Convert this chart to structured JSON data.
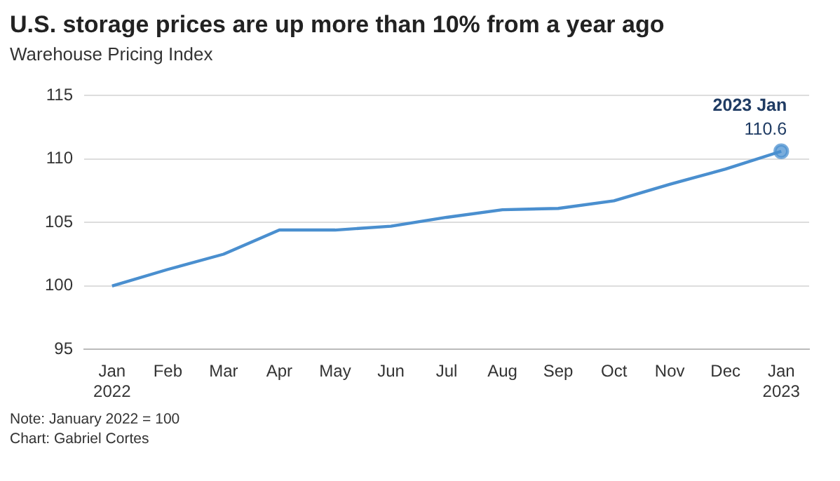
{
  "chart_data": {
    "type": "line",
    "title": "U.S. storage prices are up more than 10% from a year ago",
    "subtitle": "Warehouse Pricing Index",
    "categories": [
      "Jan 2022",
      "Feb",
      "Mar",
      "Apr",
      "May",
      "Jun",
      "Jul",
      "Aug",
      "Sep",
      "Oct",
      "Nov",
      "Dec",
      "Jan 2023"
    ],
    "series": [
      {
        "color": "#4a8fcf",
        "values": [
          100,
          101.3,
          102.5,
          104.4,
          104.4,
          104.7,
          105.4,
          106.0,
          106.1,
          106.7,
          108.0,
          109.2,
          110.6
        ],
        "value_labels": [
          null,
          null,
          null,
          null,
          null,
          null,
          null,
          null,
          null,
          null,
          null,
          null,
          "110.6"
        ]
      }
    ],
    "ylim": [
      95,
      115
    ],
    "yticks": [
      95,
      100,
      105,
      110,
      115
    ],
    "grid": "y",
    "legend": false,
    "line_style": "solid",
    "annotations": [
      {
        "text": "2023 Jan",
        "x": "Jan 2023",
        "y": 110.6
      },
      "Note: January 2022 = 100",
      "Chart: Gabriel Cortes"
    ]
  }
}
